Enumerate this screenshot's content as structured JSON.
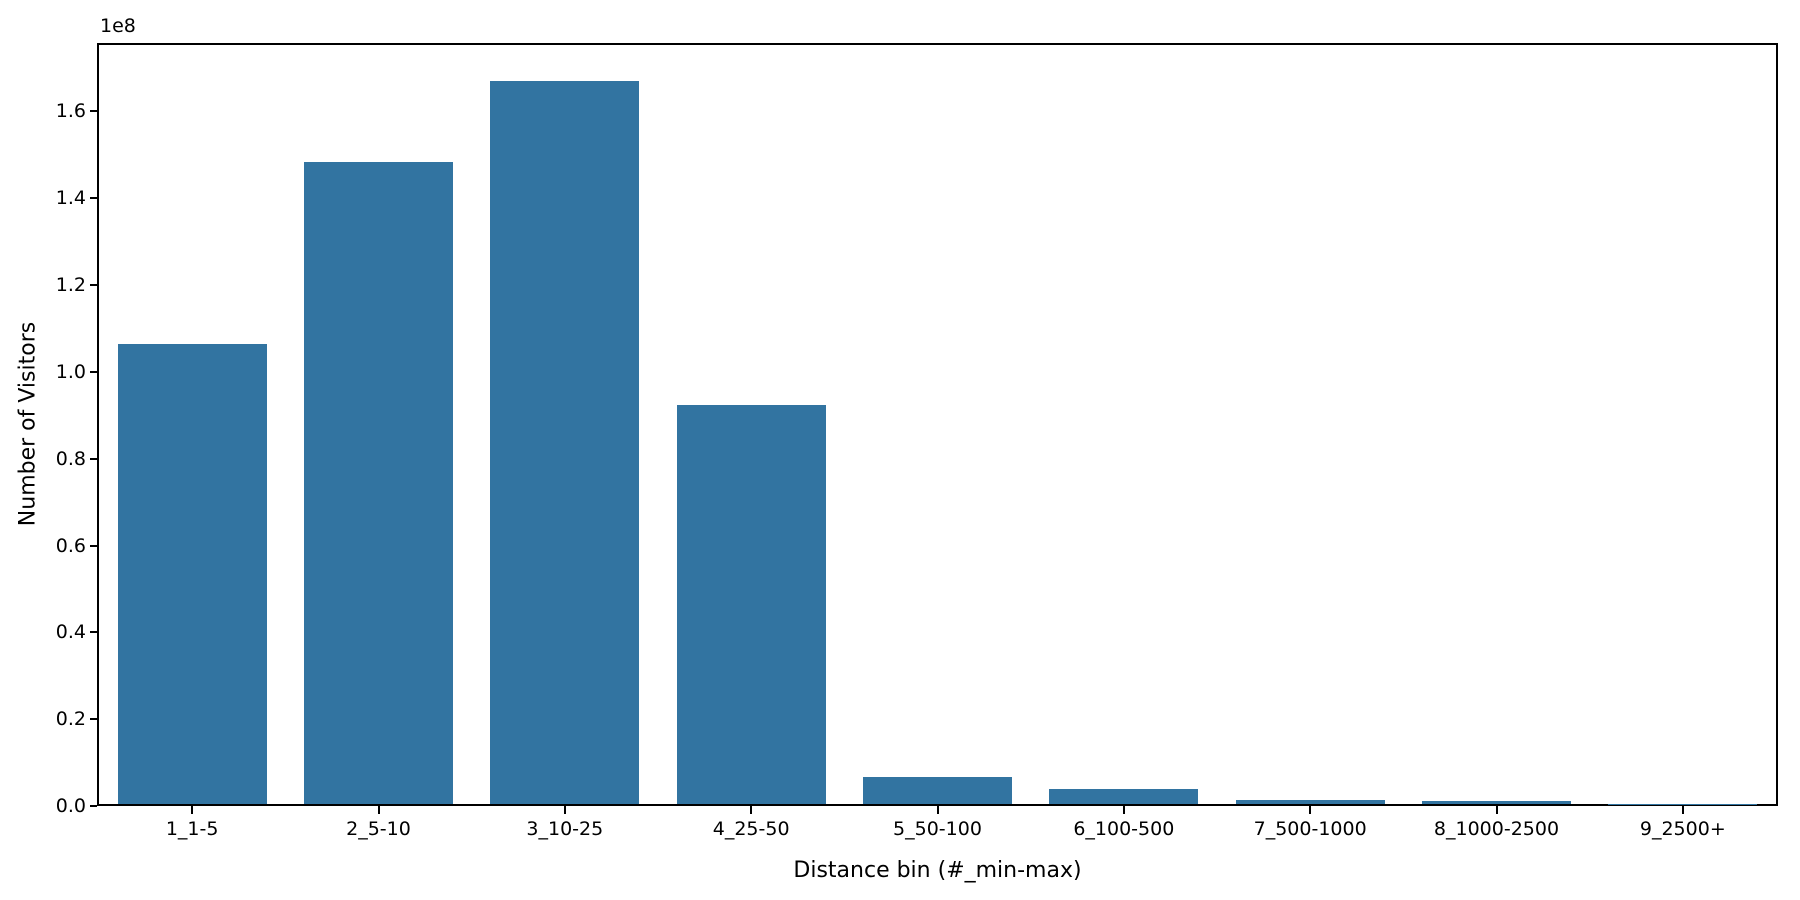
{
  "chart_data": {
    "type": "bar",
    "title": "",
    "xlabel": "Distance bin (#_min-max)",
    "ylabel": "Number of Visitors",
    "offset_text": "1e8",
    "categories": [
      "1_1-5",
      "2_5-10",
      "3_10-25",
      "4_25-50",
      "5_50-100",
      "6_100-500",
      "7_500-1000",
      "8_1000-2500",
      "9_2500+"
    ],
    "values": [
      106600000,
      148700000,
      167400000,
      92400000,
      6340000,
      3410000,
      920000,
      620000,
      50000
    ],
    "ytick_values": [
      0,
      20000000,
      40000000,
      60000000,
      80000000,
      100000000,
      120000000,
      140000000,
      160000000
    ],
    "ytick_labels": [
      "0.0",
      "0.2",
      "0.4",
      "0.6",
      "0.8",
      "1.0",
      "1.2",
      "1.4",
      "1.6"
    ],
    "ylim": [
      0,
      175770000
    ],
    "bar_color": "#3274a1",
    "bar_width_fraction": 0.8,
    "grid": false,
    "legend": null
  }
}
